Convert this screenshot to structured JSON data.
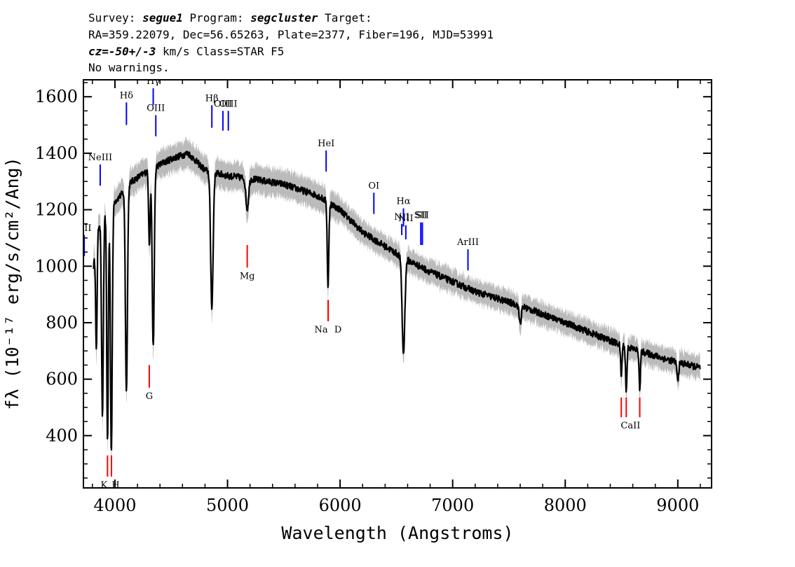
{
  "header": {
    "line1": {
      "pre": "Survey: ",
      "survey": "segue1",
      "mid": " Program: ",
      "program": "segcluster",
      "post": " Target:"
    },
    "line2": "RA=359.22079, Dec=56.65263, Plate=2377, Fiber=196, MJD=53991",
    "line3": {
      "cz": "cz=-50+/-3",
      "post": " km/s Class=STAR F5"
    },
    "line4": "No warnings."
  },
  "chart_data": {
    "type": "line",
    "xlabel": "Wavelength (Angstroms)",
    "ylabel": "fλ (10⁻¹⁷ erg/s/cm²/Ang)",
    "xlim": [
      3720,
      9300
    ],
    "ylim": [
      215,
      1660
    ],
    "x_ticks": [
      4000,
      5000,
      6000,
      7000,
      8000,
      9000
    ],
    "x_tick_labels": [
      "4000",
      "5000",
      "6000",
      "7000",
      "8000",
      "9000"
    ],
    "y_ticks": [
      400,
      600,
      800,
      1000,
      1200,
      1400,
      1600
    ],
    "y_tick_labels": [
      "400",
      "600",
      "800",
      "1000",
      "1200",
      "1400",
      "1600"
    ],
    "series": [
      {
        "name": "flux",
        "color": "#000000",
        "continuum": [
          [
            3810,
            1000
          ],
          [
            3860,
            1150
          ],
          [
            3950,
            1210
          ],
          [
            4050,
            1250
          ],
          [
            4150,
            1300
          ],
          [
            4300,
            1340
          ],
          [
            4500,
            1380
          ],
          [
            4650,
            1400
          ],
          [
            4800,
            1340
          ],
          [
            5000,
            1320
          ],
          [
            5200,
            1310
          ],
          [
            5500,
            1290
          ],
          [
            5800,
            1250
          ],
          [
            6000,
            1200
          ],
          [
            6200,
            1120
          ],
          [
            6400,
            1070
          ],
          [
            6560,
            1030
          ],
          [
            6800,
            980
          ],
          [
            7200,
            910
          ],
          [
            7600,
            860
          ],
          [
            8000,
            800
          ],
          [
            8500,
            720
          ],
          [
            8900,
            670
          ],
          [
            9200,
            640
          ]
        ],
        "absorption_lines": [
          {
            "x": 3835,
            "depth": 380,
            "width": 6
          },
          {
            "x": 3889,
            "depth": 700,
            "width": 8
          },
          {
            "x": 3934,
            "depth": 820,
            "width": 7
          },
          {
            "x": 3968,
            "depth": 880,
            "width": 8
          },
          {
            "x": 4102,
            "depth": 720,
            "width": 9
          },
          {
            "x": 4306,
            "depth": 260,
            "width": 7
          },
          {
            "x": 4340,
            "depth": 640,
            "width": 9
          },
          {
            "x": 4861,
            "depth": 480,
            "width": 11
          },
          {
            "x": 5175,
            "depth": 110,
            "width": 12
          },
          {
            "x": 5893,
            "depth": 300,
            "width": 7
          },
          {
            "x": 6563,
            "depth": 340,
            "width": 12
          },
          {
            "x": 7600,
            "depth": 60,
            "width": 10
          },
          {
            "x": 8498,
            "depth": 110,
            "width": 6
          },
          {
            "x": 8542,
            "depth": 160,
            "width": 6
          },
          {
            "x": 8662,
            "depth": 140,
            "width": 6
          },
          {
            "x": 9000,
            "depth": 60,
            "width": 8
          }
        ]
      },
      {
        "name": "error band",
        "color": "#bbbbbb"
      }
    ],
    "emission_labels": [
      {
        "label": "OII",
        "x": 3727,
        "y_top": 1110,
        "y_bottom": 1035
      },
      {
        "label": "NeIII",
        "x": 3869,
        "y_top": 1285,
        "y_bottom": 1360
      },
      {
        "label": "Hδ",
        "x": 4102,
        "y_top": 1500,
        "y_bottom": 1580
      },
      {
        "label": "Hγ",
        "x": 4340,
        "y_top": 1570,
        "y_bottom": 1630
      },
      {
        "label": "OIII",
        "x": 4363,
        "y_top": 1460,
        "y_bottom": 1535
      },
      {
        "label": "Hβ",
        "x": 4861,
        "y_top": 1490,
        "y_bottom": 1570
      },
      {
        "label": "OIII",
        "x": 4959,
        "y_top": 1480,
        "y_bottom": 1550
      },
      {
        "label": "OIII",
        "x": 5007,
        "y_top": 1480,
        "y_bottom": 1550
      },
      {
        "label": "HeI",
        "x": 5876,
        "y_top": 1335,
        "y_bottom": 1410
      },
      {
        "label": "OI",
        "x": 6300,
        "y_top": 1185,
        "y_bottom": 1260
      },
      {
        "label": "NII",
        "x": 6548,
        "y_top": 1110,
        "y_bottom": 1150
      },
      {
        "label": "Hα",
        "x": 6563,
        "y_top": 1140,
        "y_bottom": 1205
      },
      {
        "label": "NII",
        "x": 6584,
        "y_top": 1095,
        "y_bottom": 1145
      },
      {
        "label": "SII",
        "x": 6717,
        "y_top": 1075,
        "y_bottom": 1155
      },
      {
        "label": "SII",
        "x": 6731,
        "y_top": 1075,
        "y_bottom": 1155
      },
      {
        "label": "ArIII",
        "x": 7136,
        "y_top": 985,
        "y_bottom": 1060
      }
    ],
    "absorption_labels": [
      {
        "label": "K",
        "x": 3934,
        "y_top": 330,
        "y_bottom": 255
      },
      {
        "label": "H",
        "x": 3969,
        "y_top": 330,
        "y_bottom": 255
      },
      {
        "label": "G",
        "x": 4305,
        "y_top": 650,
        "y_bottom": 570
      },
      {
        "label": "Mg",
        "x": 5175,
        "y_top": 1075,
        "y_bottom": 995
      },
      {
        "label": "Na",
        "x": 5894,
        "y_top": 880,
        "y_bottom": 805
      },
      {
        "label": "D",
        "x": 5894,
        "y_top": 880,
        "y_bottom": 805
      },
      {
        "label": "CaII",
        "x": 8498,
        "y_top": 535,
        "y_bottom": 465
      },
      {
        "label": "CaII",
        "x": 8542,
        "y_top": 535,
        "y_bottom": 465
      },
      {
        "label": "CaII",
        "x": 8662,
        "y_top": 535,
        "y_bottom": 465
      }
    ],
    "emission_color": "#0000ff",
    "absorption_color": "#ff0000"
  }
}
